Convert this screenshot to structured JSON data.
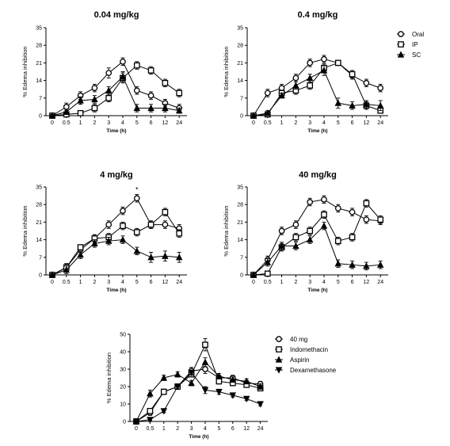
{
  "chart_data": [
    {
      "type": "line",
      "title": "0.04 mg/kg",
      "xlabel": "Time (h)",
      "ylabel": "% Edema inhibition",
      "categories": [
        "0",
        "0.5",
        "1",
        "2",
        "3",
        "4",
        "5",
        "6",
        "12",
        "24"
      ],
      "yticks": [
        0,
        7,
        14,
        21,
        28,
        35
      ],
      "ylim": [
        0,
        35
      ],
      "grid": false,
      "series": [
        {
          "name": "Oral",
          "marker": "circle",
          "values": [
            0,
            3.5,
            8,
            11,
            17,
            21.5,
            10,
            8,
            5,
            3
          ],
          "errors": [
            0.5,
            1.5,
            1.5,
            1.5,
            2,
            1.5,
            1.5,
            1.5,
            1.5,
            1.5
          ]
        },
        {
          "name": "IP",
          "marker": "square",
          "values": [
            0,
            0.5,
            1,
            3,
            7,
            15,
            20,
            18,
            13,
            9
          ],
          "errors": [
            0.3,
            0.5,
            0.5,
            1.5,
            1.5,
            2,
            1.5,
            1.5,
            1.5,
            1.5
          ]
        },
        {
          "name": "SC",
          "marker": "triangle",
          "values": [
            0,
            1.5,
            6,
            6.5,
            10,
            15.5,
            3,
            3,
            3,
            2
          ],
          "errors": [
            0.5,
            1,
            1.5,
            1.5,
            1.5,
            2,
            1.5,
            1.5,
            1.5,
            1
          ]
        }
      ],
      "annotations": []
    },
    {
      "type": "line",
      "title": "0.4 mg/kg",
      "xlabel": "Time (h)",
      "ylabel": "% Edema inhibition",
      "categories": [
        "0",
        "0.5",
        "1",
        "2",
        "3",
        "4",
        "5",
        "6",
        "12",
        "24"
      ],
      "yticks": [
        0,
        7,
        14,
        21,
        28,
        35
      ],
      "ylim": [
        0,
        35
      ],
      "grid": false,
      "series": [
        {
          "name": "Oral",
          "marker": "circle",
          "values": [
            0,
            9,
            11,
            15,
            21,
            22.5,
            21,
            16,
            13,
            11
          ],
          "errors": [
            0.5,
            1.5,
            1.5,
            1.5,
            1.5,
            1.5,
            1,
            1.5,
            1.5,
            1.5
          ]
        },
        {
          "name": "IP",
          "marker": "square",
          "values": [
            0,
            0.5,
            9,
            10,
            12,
            19,
            21,
            16.5,
            4,
            2
          ],
          "errors": [
            0.3,
            0.5,
            1,
            1.5,
            1.5,
            1.5,
            1,
            1.5,
            1.5,
            1
          ]
        },
        {
          "name": "SC",
          "marker": "triangle",
          "values": [
            0,
            1,
            8,
            12,
            15,
            18,
            5,
            4,
            4.5,
            4
          ],
          "errors": [
            0.5,
            1,
            1,
            1.5,
            1.5,
            2,
            2,
            1.5,
            1.5,
            2
          ]
        }
      ],
      "annotations": []
    },
    {
      "type": "line",
      "title": "4 mg/kg",
      "xlabel": "Time (h)",
      "ylabel": "% Edema inhibition",
      "categories": [
        "0",
        "0.5",
        "1",
        "2",
        "3",
        "4",
        "5",
        "6",
        "12",
        "24"
      ],
      "yticks": [
        0,
        7,
        14,
        21,
        28,
        35
      ],
      "ylim": [
        0,
        35
      ],
      "grid": false,
      "series": [
        {
          "name": "Oral",
          "marker": "circle",
          "values": [
            0,
            3,
            10,
            14.5,
            20,
            25.5,
            30.5,
            20,
            20,
            18.5
          ],
          "errors": [
            0.5,
            1.5,
            1,
            1.5,
            1.5,
            1.5,
            1.5,
            1.5,
            1.5,
            1.5
          ]
        },
        {
          "name": "IP",
          "marker": "square",
          "values": [
            0,
            3,
            11,
            14.5,
            15,
            19.5,
            17,
            20,
            25,
            16.5
          ],
          "errors": [
            0.5,
            1.5,
            1,
            1.5,
            1.5,
            1.5,
            1.5,
            1.5,
            1.5,
            1.5
          ]
        },
        {
          "name": "SC",
          "marker": "triangle",
          "values": [
            0,
            2,
            8,
            12.5,
            13.5,
            14,
            9.5,
            7,
            7.5,
            7
          ],
          "errors": [
            0.5,
            1.5,
            1.5,
            1.5,
            1.5,
            1.5,
            1.5,
            2,
            2,
            2
          ]
        }
      ],
      "annotations": [
        {
          "text": "*",
          "category": "5"
        }
      ]
    },
    {
      "type": "line",
      "title": "40 mg/kg",
      "xlabel": "Time (h)",
      "ylabel": "% Edema inhibition",
      "categories": [
        "0",
        "0.5",
        "1",
        "2",
        "3",
        "4",
        "5",
        "6",
        "12",
        "24"
      ],
      "yticks": [
        0,
        7,
        14,
        21,
        28,
        35
      ],
      "ylim": [
        0,
        35
      ],
      "grid": false,
      "series": [
        {
          "name": "Oral",
          "marker": "circle",
          "values": [
            0,
            6,
            17.5,
            20,
            29,
            30,
            26.5,
            25,
            22,
            21.5
          ],
          "errors": [
            0.5,
            1.5,
            1.5,
            1.5,
            1.5,
            1.5,
            1.5,
            1.5,
            1.5,
            1.5
          ]
        },
        {
          "name": "IP",
          "marker": "square",
          "values": [
            0,
            0.5,
            11,
            15,
            17.5,
            24,
            13.5,
            15,
            28.5,
            22
          ],
          "errors": [
            0.3,
            0.5,
            1.5,
            1.5,
            1.5,
            1.5,
            1.5,
            1.5,
            1.5,
            1.5
          ]
        },
        {
          "name": "SC",
          "marker": "triangle",
          "values": [
            0,
            5,
            11.5,
            11.5,
            14,
            19.5,
            4.5,
            4,
            3.5,
            4
          ],
          "errors": [
            0.5,
            1.5,
            1.5,
            1.5,
            1.5,
            1.5,
            1.5,
            1.5,
            1.5,
            1.5
          ]
        }
      ],
      "annotations": []
    },
    {
      "type": "line",
      "title": "",
      "xlabel": "Time (h)",
      "ylabel": "% Edema inhibition",
      "categories": [
        "0",
        "0.5",
        "1",
        "2",
        "3",
        "4",
        "5",
        "6",
        "12",
        "24"
      ],
      "yticks": [
        0,
        10,
        20,
        30,
        40,
        50
      ],
      "ylim": [
        0,
        50
      ],
      "grid": false,
      "series": [
        {
          "name": "40 mg",
          "marker": "circle",
          "values": [
            0,
            5,
            17,
            20,
            29,
            30,
            25,
            25,
            22,
            21.5
          ],
          "errors": [
            0.5,
            1.5,
            1.5,
            1.5,
            2,
            2.5,
            1.5,
            1.5,
            1.5,
            1.5
          ]
        },
        {
          "name": "Indomethacin",
          "marker": "square",
          "values": [
            0,
            6,
            17,
            20,
            27,
            44,
            23,
            22,
            21,
            19
          ],
          "errors": [
            0.5,
            1.5,
            1.5,
            1.5,
            1.5,
            3.5,
            1.5,
            1.5,
            1.5,
            1.5
          ]
        },
        {
          "name": "Aspirin",
          "marker": "triangle",
          "values": [
            0,
            16,
            25,
            27,
            22,
            34,
            26,
            24,
            23,
            20
          ],
          "errors": [
            0.5,
            2,
            1.5,
            1.5,
            1.5,
            2.5,
            1.5,
            1.5,
            1.5,
            1.5
          ]
        },
        {
          "name": "Dexamethasone",
          "marker": "triangle-down",
          "values": [
            0,
            1,
            6,
            20,
            28,
            18,
            17,
            15,
            13,
            10
          ],
          "errors": [
            0.3,
            0.5,
            1,
            1.5,
            1.5,
            2,
            1.5,
            1,
            1,
            1
          ]
        }
      ],
      "annotations": []
    }
  ]
}
